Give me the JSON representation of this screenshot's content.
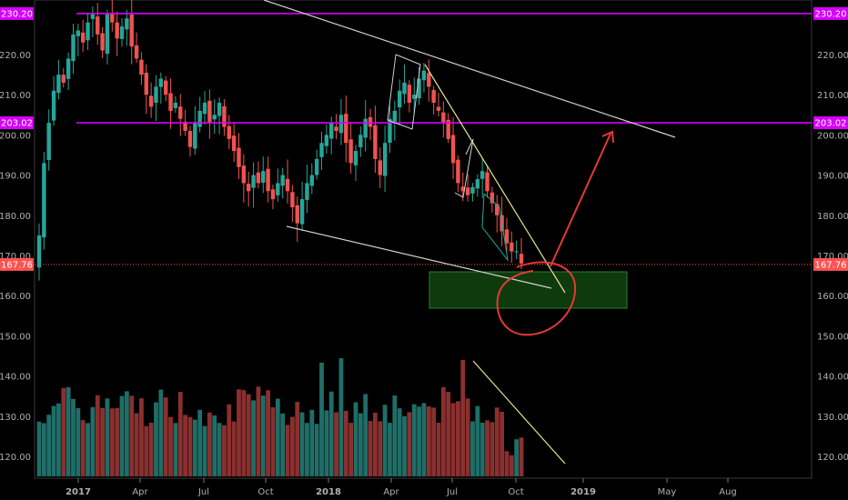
{
  "chart_data": {
    "type": "candlestick",
    "y_ticks": [
      120,
      130,
      140,
      150,
      160,
      170,
      180,
      190,
      200,
      210,
      220
    ],
    "x_ticks": [
      "2017",
      "Apr",
      "Jul",
      "Oct",
      "2018",
      "Apr",
      "Jul",
      "Oct",
      "2019",
      "May",
      "Aug"
    ],
    "bold_x_ticks": [
      "2017",
      "2018",
      "2019"
    ],
    "ylim": [
      115,
      232
    ],
    "price_labels": {
      "top": "230.20",
      "middle": "203.02",
      "current": "167.76"
    },
    "levels": {
      "top": 230.2,
      "middle": 203.02,
      "current": 167.76
    },
    "weekly_closes": [
      175,
      193,
      203,
      211,
      215,
      213,
      219,
      225,
      226,
      223,
      228,
      230,
      225,
      221,
      230,
      228,
      224,
      227,
      229,
      222,
      219,
      215,
      210,
      207,
      212,
      214,
      210,
      206,
      208,
      204,
      201,
      197,
      203,
      206,
      208,
      203,
      205,
      208,
      202,
      199,
      196,
      192,
      188,
      186,
      190,
      188,
      191,
      186,
      184,
      188,
      190,
      186,
      182,
      178,
      184,
      188,
      190,
      194,
      198,
      200,
      203,
      201,
      205,
      198,
      193,
      196,
      200,
      204,
      202,
      194,
      190,
      198,
      204,
      206,
      211,
      213,
      208,
      210,
      214,
      216,
      212,
      208,
      206,
      203,
      199,
      193,
      188,
      186,
      185,
      187,
      189,
      191,
      186,
      183,
      180,
      176,
      173,
      171,
      171,
      168
    ],
    "volume_colors": {
      "up": "#26a69a",
      "down": "#ef5350"
    },
    "colors": {
      "level_line": "#d500f9",
      "current_line": "#ff5252",
      "up": "#26a69a",
      "down": "#ef5350",
      "zone": "#1b5e20",
      "annotation": "#e53935",
      "trend_white": "#cfcfcf",
      "trend_yellow": "#e8e28a"
    }
  }
}
